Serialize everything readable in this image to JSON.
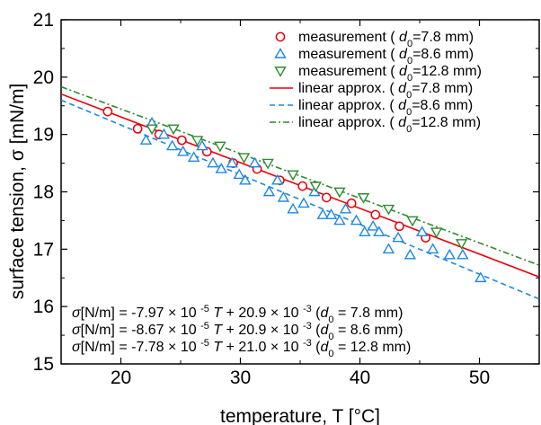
{
  "chart_data": {
    "type": "scatter",
    "xlabel": "temperature, T [°C]",
    "ylabel": "surface tension, σ [mN/m]",
    "xlim": [
      15,
      55
    ],
    "ylim": [
      15,
      21
    ],
    "x_ticks": [
      "20",
      "30",
      "40",
      "50"
    ],
    "y_ticks": [
      "15",
      "16",
      "17",
      "18",
      "19",
      "20",
      "21"
    ],
    "grid": false,
    "legend_position": "top-right",
    "series": [
      {
        "name": "measurement ( d0=7.8 mm)",
        "kind": "scatter",
        "marker": "circle",
        "color": "#e8000b",
        "points": [
          [
            18.9,
            19.4
          ],
          [
            21.4,
            19.1
          ],
          [
            23.2,
            19.0
          ],
          [
            25.1,
            18.9
          ],
          [
            27.2,
            18.7
          ],
          [
            29.4,
            18.5
          ],
          [
            31.4,
            18.4
          ],
          [
            33.3,
            18.2
          ],
          [
            35.2,
            18.1
          ],
          [
            37.2,
            17.9
          ],
          [
            39.3,
            17.8
          ],
          [
            41.3,
            17.6
          ],
          [
            43.3,
            17.4
          ],
          [
            45.5,
            17.2
          ]
        ]
      },
      {
        "name": "measurement ( d0=8.6 mm)",
        "kind": "scatter",
        "marker": "triangle-up",
        "color": "#1e88e5",
        "points": [
          [
            22.1,
            18.9
          ],
          [
            22.6,
            19.2
          ],
          [
            23.6,
            19.0
          ],
          [
            24.3,
            18.8
          ],
          [
            25.2,
            18.7
          ],
          [
            26.1,
            18.6
          ],
          [
            26.8,
            18.8
          ],
          [
            27.7,
            18.5
          ],
          [
            28.4,
            18.4
          ],
          [
            29.3,
            18.5
          ],
          [
            29.9,
            18.3
          ],
          [
            30.4,
            18.2
          ],
          [
            31.2,
            18.5
          ],
          [
            32.4,
            18.0
          ],
          [
            33.1,
            18.2
          ],
          [
            33.6,
            17.9
          ],
          [
            34.4,
            17.7
          ],
          [
            35.3,
            17.8
          ],
          [
            36.2,
            18.0
          ],
          [
            36.9,
            17.6
          ],
          [
            37.6,
            17.6
          ],
          [
            38.3,
            17.5
          ],
          [
            38.8,
            17.7
          ],
          [
            39.7,
            17.5
          ],
          [
            40.4,
            17.3
          ],
          [
            41.1,
            17.4
          ],
          [
            41.6,
            17.3
          ],
          [
            42.4,
            17.0
          ],
          [
            43.2,
            17.2
          ],
          [
            44.2,
            16.9
          ],
          [
            45.2,
            17.3
          ],
          [
            46.1,
            17.0
          ],
          [
            47.5,
            16.9
          ],
          [
            48.6,
            16.9
          ],
          [
            50.1,
            16.5
          ]
        ]
      },
      {
        "name": "measurement ( d0=12.8 mm)",
        "kind": "scatter",
        "marker": "triangle-down",
        "color": "#2e8b2e",
        "points": [
          [
            22.6,
            19.1
          ],
          [
            24.4,
            19.1
          ],
          [
            26.4,
            18.9
          ],
          [
            28.3,
            18.8
          ],
          [
            30.3,
            18.6
          ],
          [
            32.3,
            18.5
          ],
          [
            34.4,
            18.3
          ],
          [
            36.3,
            18.1
          ],
          [
            38.3,
            18.0
          ],
          [
            40.3,
            17.9
          ],
          [
            42.4,
            17.7
          ],
          [
            44.4,
            17.5
          ],
          [
            46.4,
            17.3
          ],
          [
            48.5,
            17.1
          ]
        ]
      },
      {
        "name": "linear approx. ( d0=7.8 mm)",
        "kind": "line",
        "style": "solid",
        "color": "#e8000b",
        "slope": -0.0797,
        "intercept": 20.9
      },
      {
        "name": "linear approx. ( d0=8.6 mm)",
        "kind": "line",
        "style": "dashed",
        "color": "#1e88e5",
        "slope": -0.0867,
        "intercept": 20.9
      },
      {
        "name": "linear approx. ( d0=12.8 mm)",
        "kind": "line",
        "style": "dashdot",
        "color": "#2e8b2e",
        "slope": -0.0778,
        "intercept": 21.0
      }
    ],
    "annotations": [
      "σ[N/m] = -7.97 × 10 -5 T + 20.9 × 10 -3 (d0 = 7.8 mm)",
      "σ[N/m] = -8.67 × 10 -5 T + 20.9 × 10 -3 (d0 = 8.6 mm)",
      "σ[N/m] = -7.78 × 10 -5 T + 21.0 × 10 -3 (d0 = 12.8 mm)"
    ]
  }
}
